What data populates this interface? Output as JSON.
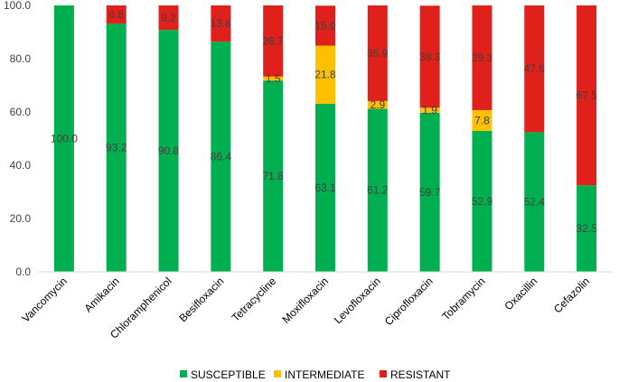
{
  "chart_data": {
    "type": "bar",
    "stacked": true,
    "categories": [
      "Vancomycin",
      "Amikacin",
      "Chloramphenicol",
      "Besifloxacin",
      "Tetracycline",
      "Moxifloxacin",
      "Levofloxacin",
      "Ciprofloxacin",
      "Tobramycin",
      "Oxacillin",
      "Cefazolin"
    ],
    "series": [
      {
        "name": "SUSCEPTIBLE",
        "color": "#00B050",
        "values": [
          100.0,
          93.2,
          90.8,
          86.4,
          71.8,
          63.1,
          61.2,
          59.7,
          52.9,
          52.4,
          32.5
        ]
      },
      {
        "name": "INTERMEDIATE",
        "color": "#FFC000",
        "values": [
          0,
          0,
          0,
          0,
          1.5,
          21.8,
          2.9,
          1.9,
          7.8,
          0,
          0
        ]
      },
      {
        "name": "RESISTANT",
        "color": "#E0201A",
        "values": [
          0,
          6.8,
          9.2,
          13.6,
          26.7,
          15.0,
          35.9,
          38.3,
          39.3,
          47.6,
          67.5
        ]
      }
    ],
    "labels": {
      "SUSCEPTIBLE": [
        "100.0",
        "93.2",
        "90.8",
        "86.4",
        "71.8",
        "63.1",
        "61.2",
        "59.7",
        "52.9",
        "52.4",
        "32.5"
      ],
      "INTERMEDIATE": [
        "",
        "",
        "",
        "",
        "1.5",
        "21.8",
        "2.9",
        "1.9",
        "7.8",
        "",
        ""
      ],
      "RESISTANT": [
        "",
        "6.8",
        "9.2",
        "13.6",
        "26.7",
        "15.0",
        "35.9",
        "38.3",
        "39.3",
        "47.6",
        "67.5"
      ]
    },
    "yticks": [
      "0.0",
      "20.0",
      "40.0",
      "60.0",
      "80.0",
      "100.0"
    ],
    "ylim": [
      0,
      100
    ],
    "grid": false,
    "legend": "bottom",
    "title": "",
    "xlabel": "",
    "ylabel": ""
  }
}
